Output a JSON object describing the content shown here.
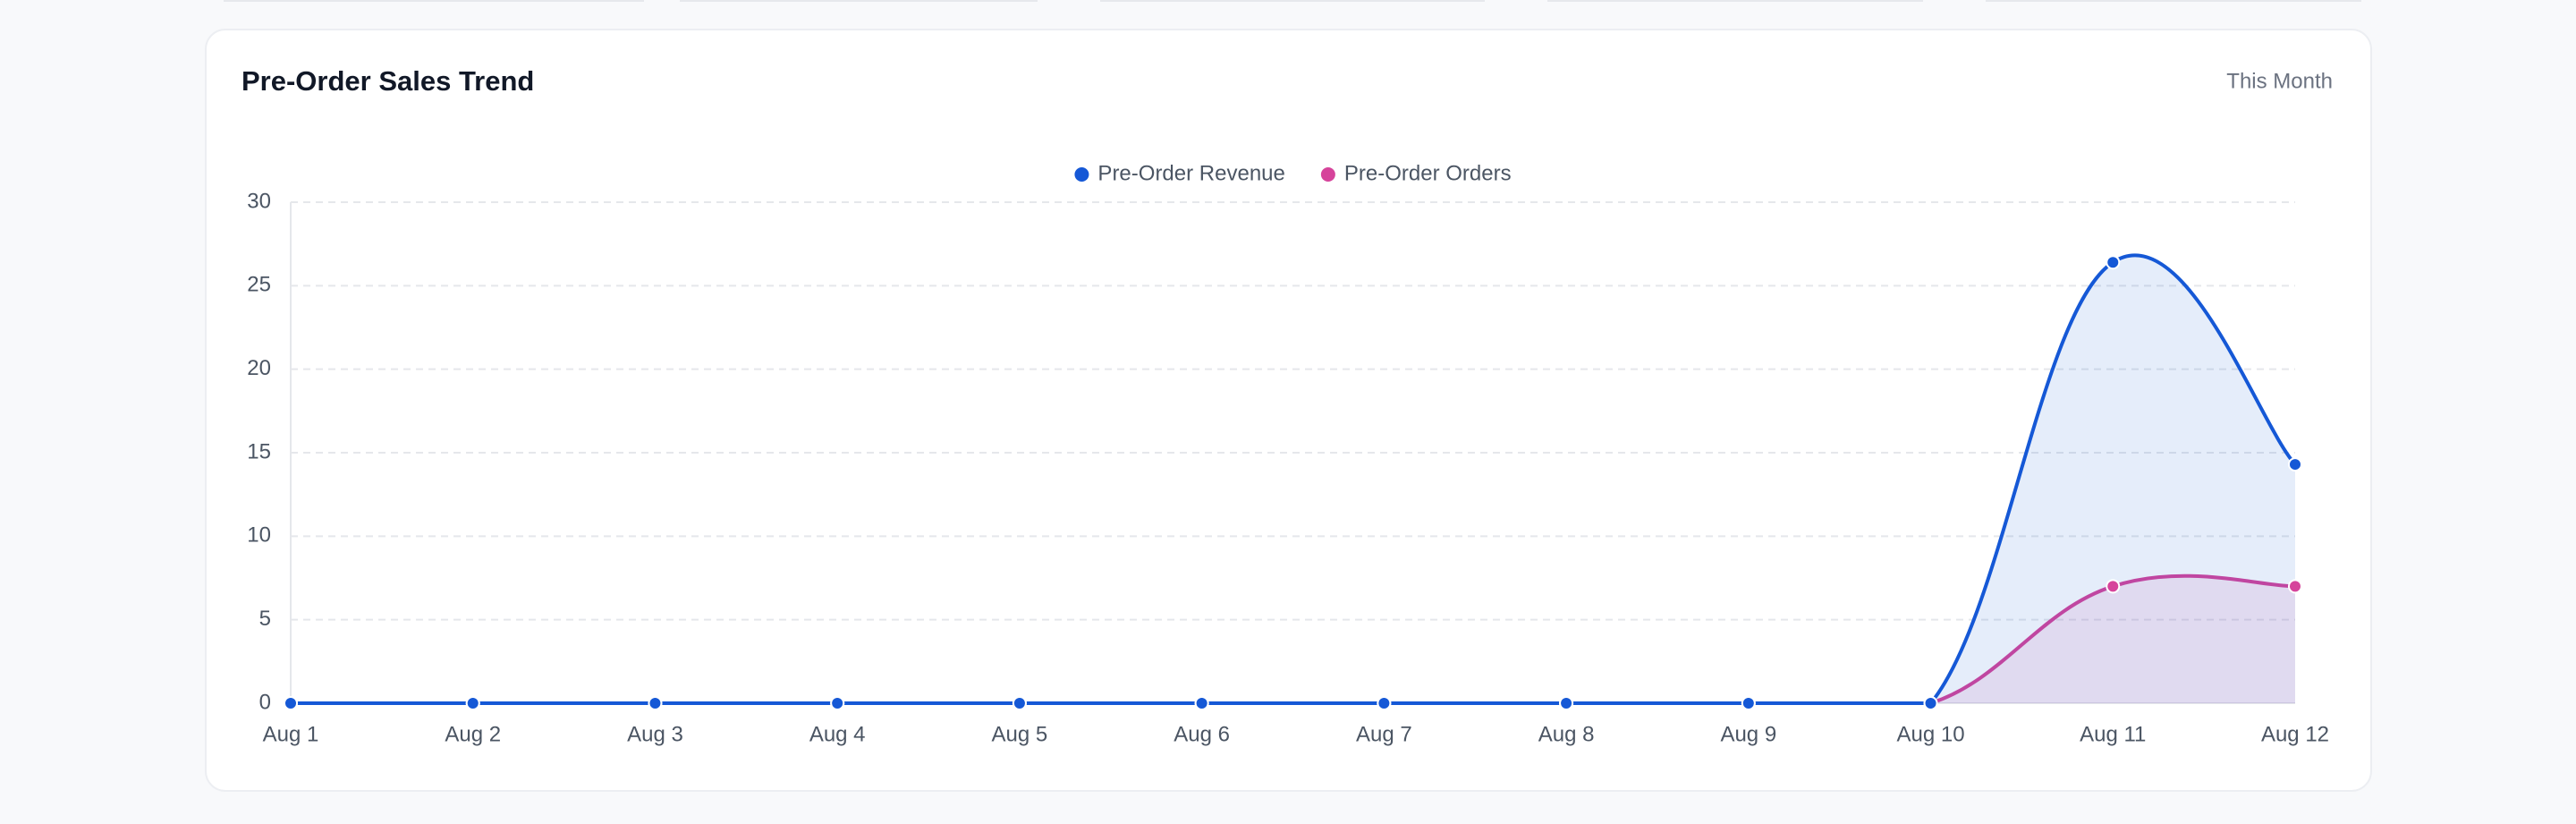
{
  "chart_data": {
    "type": "line",
    "title": "Pre-Order Sales Trend",
    "period": "This Month",
    "categories": [
      "Aug 1",
      "Aug 2",
      "Aug 3",
      "Aug 4",
      "Aug 5",
      "Aug 6",
      "Aug 7",
      "Aug 8",
      "Aug 9",
      "Aug 10",
      "Aug 11",
      "Aug 12"
    ],
    "series": [
      {
        "name": "Pre-Order Revenue",
        "color": "#1558d6",
        "values": [
          0,
          0,
          0,
          0,
          0,
          0,
          0,
          0,
          0,
          0,
          26.4,
          14.3
        ]
      },
      {
        "name": "Pre-Order Orders",
        "color": "#d6449b",
        "values": [
          0,
          0,
          0,
          0,
          0,
          0,
          0,
          0,
          0,
          0,
          7,
          7
        ]
      }
    ],
    "ylim": [
      0,
      30
    ],
    "yticks": [
      0,
      5,
      10,
      15,
      20,
      25,
      30
    ],
    "grid": true,
    "legend": "top",
    "fill": true
  }
}
